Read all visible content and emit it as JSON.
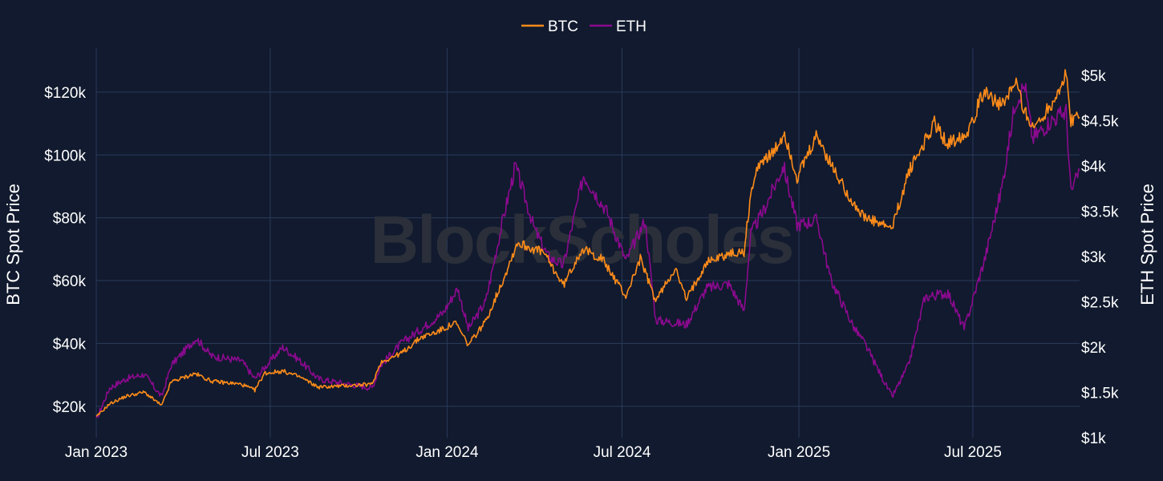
{
  "watermark": "BlockScholes",
  "colors": {
    "background": "#111a2e",
    "grid": "#2b3a5c",
    "btc": "#ff8c1a",
    "eth": "#8b0a8f"
  },
  "chart_data": {
    "type": "line",
    "title": "",
    "xlabel": "",
    "ylabel": "BTC Spot Price",
    "y2label": "ETH Spot Price",
    "x_ticks": [
      "Jan 2023",
      "Jul 2023",
      "Jan 2024",
      "Jul 2024",
      "Jan 2025",
      "Jul 2025"
    ],
    "x_tick_dates": [
      "2023-01-01",
      "2023-07-01",
      "2024-01-01",
      "2024-07-01",
      "2025-01-01",
      "2025-07-01"
    ],
    "xlim": [
      "2023-01-01",
      "2025-10-20"
    ],
    "ylim": [
      10000,
      134000
    ],
    "y2lim": [
      1000,
      5300
    ],
    "y_ticks": [
      20000,
      40000,
      60000,
      80000,
      100000,
      120000
    ],
    "y_tick_labels": [
      "$20k",
      "$40k",
      "$60k",
      "$80k",
      "$100k",
      "$120k"
    ],
    "y2_ticks": [
      1000,
      1500,
      2000,
      2500,
      3000,
      3500,
      4000,
      4500,
      5000
    ],
    "y2_tick_labels": [
      "$1k",
      "$1.5k",
      "$2k",
      "$2.5k",
      "$3k",
      "$3.5k",
      "$4k",
      "$4.5k",
      "$5k"
    ],
    "grid": true,
    "legend_position": "top-center",
    "series": [
      {
        "name": "BTC",
        "axis": "left",
        "color": "#ff8c1a",
        "points": [
          [
            "2023-01-01",
            16600
          ],
          [
            "2023-01-15",
            20800
          ],
          [
            "2023-02-01",
            23200
          ],
          [
            "2023-02-20",
            24500
          ],
          [
            "2023-03-10",
            20200
          ],
          [
            "2023-03-20",
            27800
          ],
          [
            "2023-04-14",
            30400
          ],
          [
            "2023-05-01",
            28000
          ],
          [
            "2023-06-01",
            27000
          ],
          [
            "2023-06-15",
            25100
          ],
          [
            "2023-06-25",
            30500
          ],
          [
            "2023-07-14",
            31200
          ],
          [
            "2023-08-01",
            29300
          ],
          [
            "2023-08-20",
            26100
          ],
          [
            "2023-09-15",
            26500
          ],
          [
            "2023-10-15",
            27000
          ],
          [
            "2023-10-24",
            34000
          ],
          [
            "2023-11-15",
            37000
          ],
          [
            "2023-12-05",
            42000
          ],
          [
            "2023-12-20",
            43500
          ],
          [
            "2024-01-10",
            46500
          ],
          [
            "2024-01-23",
            39500
          ],
          [
            "2024-02-10",
            47000
          ],
          [
            "2024-02-28",
            60000
          ],
          [
            "2024-03-14",
            72000
          ],
          [
            "2024-04-10",
            69000
          ],
          [
            "2024-05-01",
            58500
          ],
          [
            "2024-05-20",
            70000
          ],
          [
            "2024-06-10",
            67000
          ],
          [
            "2024-07-05",
            55000
          ],
          [
            "2024-07-20",
            67000
          ],
          [
            "2024-08-05",
            53500
          ],
          [
            "2024-08-25",
            64000
          ],
          [
            "2024-09-06",
            54000
          ],
          [
            "2024-09-27",
            66000
          ],
          [
            "2024-10-20",
            68500
          ],
          [
            "2024-11-05",
            69000
          ],
          [
            "2024-11-12",
            88000
          ],
          [
            "2024-11-22",
            98500
          ],
          [
            "2024-12-05",
            100000
          ],
          [
            "2024-12-17",
            107000
          ],
          [
            "2024-12-30",
            92500
          ],
          [
            "2025-01-20",
            106000
          ],
          [
            "2025-02-03",
            97000
          ],
          [
            "2025-02-28",
            84000
          ],
          [
            "2025-03-10",
            80000
          ],
          [
            "2025-04-08",
            76500
          ],
          [
            "2025-04-25",
            94500
          ],
          [
            "2025-05-22",
            110000
          ],
          [
            "2025-06-05",
            103500
          ],
          [
            "2025-06-25",
            107500
          ],
          [
            "2025-07-14",
            121000
          ],
          [
            "2025-07-31",
            115000
          ],
          [
            "2025-08-14",
            123000
          ],
          [
            "2025-09-01",
            108000
          ],
          [
            "2025-09-20",
            116000
          ],
          [
            "2025-10-06",
            125000
          ],
          [
            "2025-10-11",
            111000
          ],
          [
            "2025-10-20",
            112000
          ]
        ]
      },
      {
        "name": "ETH",
        "axis": "right",
        "color": "#8b0a8f",
        "points": [
          [
            "2023-01-01",
            1200
          ],
          [
            "2023-01-15",
            1550
          ],
          [
            "2023-02-01",
            1650
          ],
          [
            "2023-02-20",
            1700
          ],
          [
            "2023-03-10",
            1450
          ],
          [
            "2023-03-20",
            1800
          ],
          [
            "2023-04-15",
            2100
          ],
          [
            "2023-05-01",
            1900
          ],
          [
            "2023-06-01",
            1850
          ],
          [
            "2023-06-15",
            1650
          ],
          [
            "2023-07-14",
            2000
          ],
          [
            "2023-08-01",
            1850
          ],
          [
            "2023-08-20",
            1650
          ],
          [
            "2023-09-15",
            1600
          ],
          [
            "2023-10-15",
            1550
          ],
          [
            "2023-10-24",
            1800
          ],
          [
            "2023-11-15",
            2050
          ],
          [
            "2023-12-05",
            2200
          ],
          [
            "2023-12-28",
            2380
          ],
          [
            "2024-01-12",
            2650
          ],
          [
            "2024-01-23",
            2200
          ],
          [
            "2024-02-10",
            2500
          ],
          [
            "2024-02-28",
            3400
          ],
          [
            "2024-03-12",
            4000
          ],
          [
            "2024-04-01",
            3300
          ],
          [
            "2024-04-15",
            3000
          ],
          [
            "2024-05-01",
            2900
          ],
          [
            "2024-05-22",
            3900
          ],
          [
            "2024-06-15",
            3500
          ],
          [
            "2024-07-05",
            2950
          ],
          [
            "2024-07-25",
            3400
          ],
          [
            "2024-08-05",
            2300
          ],
          [
            "2024-09-06",
            2250
          ],
          [
            "2024-09-27",
            2650
          ],
          [
            "2024-10-20",
            2700
          ],
          [
            "2024-11-05",
            2400
          ],
          [
            "2024-11-12",
            3250
          ],
          [
            "2024-11-25",
            3500
          ],
          [
            "2024-12-16",
            4000
          ],
          [
            "2024-12-30",
            3350
          ],
          [
            "2025-01-20",
            3400
          ],
          [
            "2025-02-03",
            2750
          ],
          [
            "2025-02-28",
            2200
          ],
          [
            "2025-03-10",
            2050
          ],
          [
            "2025-04-08",
            1450
          ],
          [
            "2025-04-25",
            1800
          ],
          [
            "2025-05-12",
            2550
          ],
          [
            "2025-06-05",
            2600
          ],
          [
            "2025-06-22",
            2200
          ],
          [
            "2025-07-14",
            3000
          ],
          [
            "2025-07-31",
            3750
          ],
          [
            "2025-08-14",
            4700
          ],
          [
            "2025-08-24",
            4900
          ],
          [
            "2025-09-01",
            4300
          ],
          [
            "2025-09-20",
            4500
          ],
          [
            "2025-10-06",
            4600
          ],
          [
            "2025-10-11",
            3700
          ],
          [
            "2025-10-20",
            3950
          ]
        ]
      }
    ]
  }
}
